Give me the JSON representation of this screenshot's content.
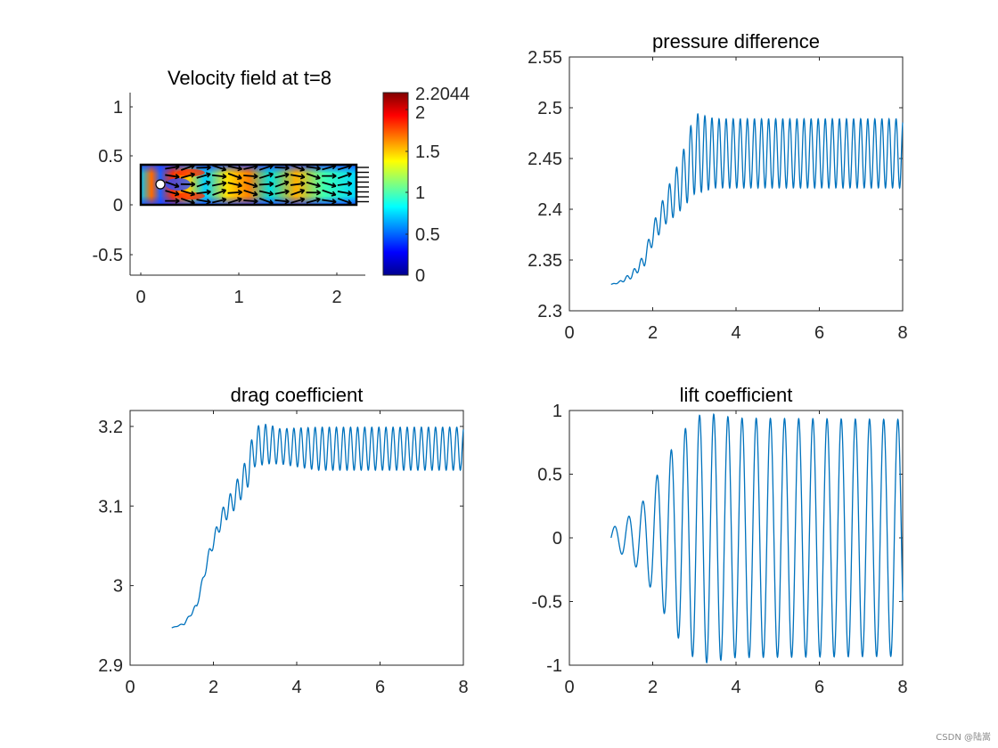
{
  "watermark": "CSDN @陆嵩",
  "chart_data": [
    {
      "id": "velocity",
      "type": "heatmap",
      "title": "Velocity field at t=8",
      "xlim": [
        -0.1,
        2.3
      ],
      "ylim": [
        -0.72,
        1.15
      ],
      "xticks": [
        0,
        1,
        2
      ],
      "yticks": [
        -0.5,
        0,
        0.5,
        1
      ],
      "ytick_labels": [
        "-0.5",
        "0",
        "0.5",
        "1"
      ],
      "channel": {
        "x": [
          0,
          2.2
        ],
        "y": [
          0,
          0.41
        ]
      },
      "cylinder": {
        "cx": 0.2,
        "cy": 0.2,
        "r": 0.05
      },
      "colorbar": {
        "min": 0,
        "max": 2.2044,
        "ticks": [
          0,
          0.5,
          1,
          1.5,
          2
        ],
        "max_label": "2.2044",
        "colormap": "jet"
      }
    },
    {
      "id": "pressure",
      "type": "line",
      "title": "pressure difference",
      "xlim": [
        0,
        8
      ],
      "ylim": [
        2.3,
        2.55
      ],
      "xticks": [
        0,
        2,
        4,
        6,
        8
      ],
      "yticks": [
        2.3,
        2.35,
        2.4,
        2.45,
        2.5,
        2.55
      ],
      "ytick_labels": [
        "2.3",
        "2.35",
        "2.4",
        "2.45",
        "2.5",
        "2.55"
      ],
      "color": "#0072BD",
      "series": [
        {
          "name": "pressure difference",
          "x_start": 1,
          "x_end": 8
        }
      ],
      "trend": {
        "keys_t": [
          1,
          1.2,
          1.5,
          1.8,
          2.0,
          2.3,
          2.6,
          2.8,
          3.0,
          3.5,
          8
        ],
        "mean": [
          2.326,
          2.328,
          2.335,
          2.35,
          2.375,
          2.4,
          2.42,
          2.435,
          2.455,
          2.455,
          2.455
        ],
        "amp": [
          0,
          0.001,
          0.003,
          0.006,
          0.01,
          0.015,
          0.024,
          0.03,
          0.04,
          0.034,
          0.034
        ],
        "period": 0.17
      }
    },
    {
      "id": "drag",
      "type": "line",
      "title": "drag coefficient",
      "xlim": [
        0,
        8
      ],
      "ylim": [
        2.9,
        3.22
      ],
      "xticks": [
        0,
        2,
        4,
        6,
        8
      ],
      "yticks": [
        2.9,
        3,
        3.1,
        3.2
      ],
      "ytick_labels": [
        "2.9",
        "3",
        "3.1",
        "3.2"
      ],
      "color": "#0072BD",
      "series": [
        {
          "name": "drag coefficient",
          "x_start": 1,
          "x_end": 8
        }
      ],
      "trend": {
        "keys_t": [
          1,
          1.3,
          1.6,
          1.9,
          2.2,
          2.5,
          2.8,
          3.0,
          3.3,
          3.6,
          4.5,
          8
        ],
        "mean": [
          2.947,
          2.952,
          2.975,
          3.04,
          3.085,
          3.11,
          3.14,
          3.175,
          3.178,
          3.175,
          3.172,
          3.172
        ],
        "amp": [
          0,
          0.001,
          0.003,
          0.006,
          0.01,
          0.015,
          0.02,
          0.025,
          0.025,
          0.022,
          0.027,
          0.027
        ],
        "period": 0.17
      }
    },
    {
      "id": "lift",
      "type": "line",
      "title": "lift coefficient",
      "xlim": [
        0,
        8
      ],
      "ylim": [
        -1,
        1
      ],
      "xticks": [
        0,
        2,
        4,
        6,
        8
      ],
      "yticks": [
        -1,
        -0.5,
        0,
        0.5,
        1
      ],
      "ytick_labels": [
        "-1",
        "-0.5",
        "0",
        "0.5",
        "1"
      ],
      "color": "#0072BD",
      "series": [
        {
          "name": "lift coefficient",
          "x_start": 1,
          "x_end": 8
        }
      ],
      "trend": {
        "keys_t": [
          1,
          1.4,
          1.8,
          2.2,
          2.6,
          3.0,
          3.3,
          4.0,
          8
        ],
        "mean": [
          0,
          0,
          0,
          0,
          0,
          0,
          0,
          0,
          0
        ],
        "amp": [
          0.07,
          0.16,
          0.3,
          0.55,
          0.78,
          0.95,
          0.98,
          0.94,
          0.93
        ],
        "period": 0.34
      }
    }
  ]
}
